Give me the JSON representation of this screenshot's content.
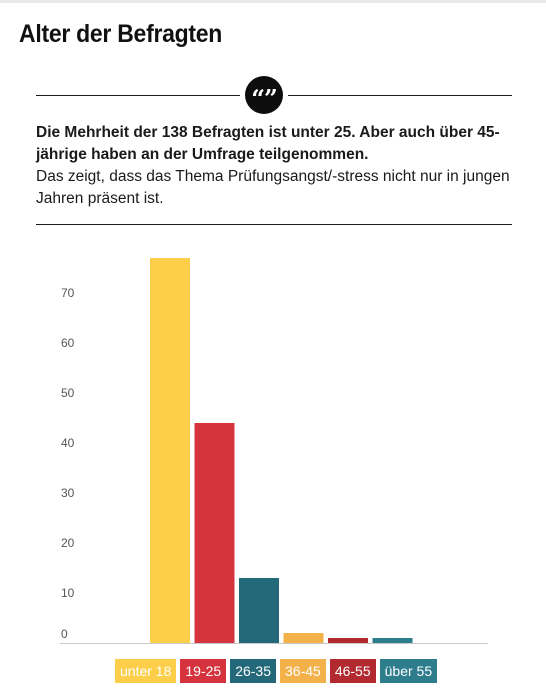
{
  "header": {
    "title": "Alter der Befragten"
  },
  "quote_icon": "quote-icon",
  "summary": {
    "bold": "Die Mehrheit der 138 Befragten ist unter 25. Aber auch über 45-jährige haben an der Umfrage teilgenommen.",
    "normal": "Das zeigt, dass das Thema Prüfungsangst/-stress nicht nur in jungen Jahren präsent ist."
  },
  "chart_data": {
    "type": "bar",
    "categories": [
      "unter 18",
      "19-25",
      "26-35",
      "36-45",
      "46-55",
      "über 55"
    ],
    "values": [
      77,
      44,
      13,
      2,
      1,
      1
    ],
    "colors": [
      "#fdce49",
      "#d5333e",
      "#23697a",
      "#f3b14a",
      "#b22a30",
      "#2d7d8d"
    ],
    "yticks": [
      0,
      10,
      20,
      30,
      40,
      50,
      60,
      70
    ],
    "ylim": [
      0,
      80
    ],
    "grid": false,
    "title": "",
    "xlabel": "",
    "ylabel": "",
    "legend": "bottom"
  }
}
